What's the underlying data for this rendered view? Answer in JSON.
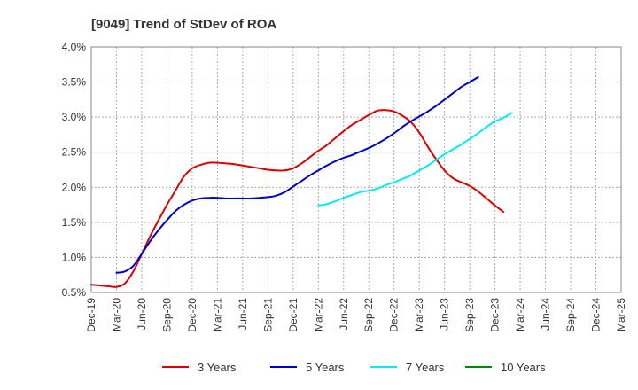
{
  "chart_data": {
    "type": "line",
    "title": "[9049]  Trend of StDev of ROA",
    "xlabel": "",
    "ylabel": "",
    "x_ticks": [
      "Dec-19",
      "Mar-20",
      "Jun-20",
      "Sep-20",
      "Dec-20",
      "Mar-21",
      "Jun-21",
      "Sep-21",
      "Dec-21",
      "Mar-22",
      "Jun-22",
      "Sep-22",
      "Dec-22",
      "Mar-23",
      "Jun-23",
      "Sep-23",
      "Dec-23",
      "Mar-24",
      "Jun-24",
      "Sep-24",
      "Dec-24",
      "Mar-25"
    ],
    "y_ticks": [
      "0.5%",
      "1.0%",
      "1.5%",
      "2.0%",
      "2.5%",
      "3.0%",
      "3.5%",
      "4.0%"
    ],
    "ylim": [
      0.5,
      4.0
    ],
    "grid": true,
    "legend_position": "bottom",
    "series": [
      {
        "name": "3 Years",
        "color": "#dd0000",
        "start_index": 0,
        "values": [
          0.61,
          0.6,
          0.59,
          0.58,
          0.63,
          0.8,
          1.05,
          1.3,
          1.53,
          1.75,
          1.95,
          2.15,
          2.27,
          2.32,
          2.35,
          2.35,
          2.34,
          2.33,
          2.31,
          2.29,
          2.27,
          2.25,
          2.24,
          2.24,
          2.27,
          2.34,
          2.43,
          2.52,
          2.6,
          2.7,
          2.8,
          2.89,
          2.96,
          3.03,
          3.09,
          3.1,
          3.08,
          3.02,
          2.93,
          2.78,
          2.58,
          2.4,
          2.24,
          2.13,
          2.07,
          2.02,
          1.94,
          1.84,
          1.74,
          1.65
        ]
      },
      {
        "name": "5 Years",
        "color": "#0000cc",
        "start_index": 3,
        "values": [
          0.78,
          0.8,
          0.88,
          1.05,
          1.23,
          1.39,
          1.53,
          1.66,
          1.75,
          1.81,
          1.84,
          1.85,
          1.85,
          1.84,
          1.84,
          1.84,
          1.84,
          1.85,
          1.86,
          1.88,
          1.93,
          2.01,
          2.09,
          2.17,
          2.24,
          2.31,
          2.37,
          2.42,
          2.46,
          2.51,
          2.56,
          2.62,
          2.69,
          2.77,
          2.86,
          2.94,
          3.01,
          3.08,
          3.16,
          3.25,
          3.34,
          3.43,
          3.5,
          3.57
        ]
      },
      {
        "name": "7 Years",
        "color": "#00eeee",
        "start_index": 27,
        "values": [
          1.74,
          1.76,
          1.8,
          1.85,
          1.89,
          1.93,
          1.95,
          1.98,
          2.03,
          2.07,
          2.12,
          2.17,
          2.24,
          2.31,
          2.39,
          2.47,
          2.54,
          2.61,
          2.69,
          2.77,
          2.86,
          2.94,
          2.99,
          3.06
        ]
      },
      {
        "name": "10 Years",
        "color": "#008800",
        "start_index": 0,
        "values": []
      }
    ]
  }
}
